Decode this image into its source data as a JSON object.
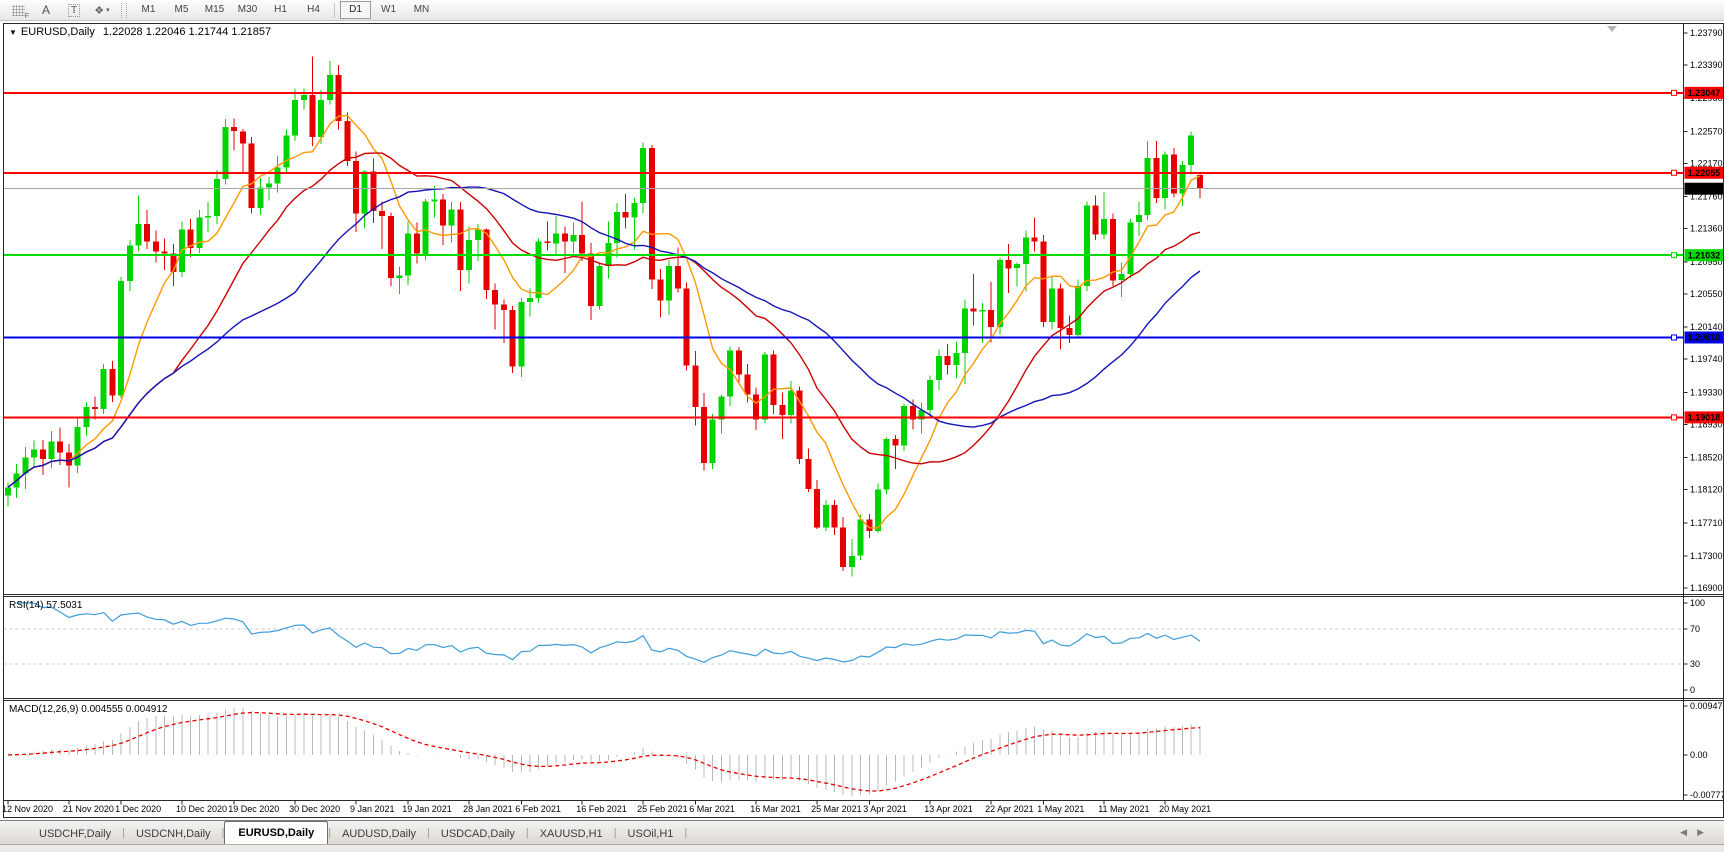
{
  "toolbar": {
    "icons": {
      "f_label": "F",
      "a_label": "A",
      "t_label": "T",
      "diamond": "❖",
      "caret": "▾"
    },
    "timeframes": [
      "M1",
      "M5",
      "M15",
      "M30",
      "H1",
      "H4",
      "D1",
      "W1",
      "MN"
    ],
    "active_timeframe": "D1"
  },
  "panes": {
    "main_title": "EURUSD,Daily",
    "main_ohlc": "1.22028 1.22046 1.21744 1.21857",
    "title_caret": "▼",
    "rsi": "RSI(14) 57.5031",
    "macd": "MACD(12,26,9) 0.004555 0.004912"
  },
  "ui_colors": {
    "bull": "#00d400",
    "bear": "#e60000",
    "ma_fast": "#ff9900",
    "ma_mid": "#cc0000",
    "ma_slow": "#1414b8",
    "rsi_line": "#3e9cd9",
    "guide": "#c8c8c8",
    "macd_hist": "#b8b8b8",
    "macd_signal": "#e80000",
    "price_line": "#a8a8a8",
    "level_red": "#ff0000",
    "level_green": "#00dc00",
    "level_blue": "#0000e6",
    "badge_black": "#000000"
  },
  "chart_data": {
    "type": "candlestick",
    "symbol": "EURUSD",
    "timeframe": "Daily",
    "ylim": [
      1.169,
      1.2379
    ],
    "price_ticks": [
      "1.23790",
      "1.23390",
      "1.22980",
      "1.22570",
      "1.22170",
      "1.21760",
      "1.21360",
      "1.20950",
      "1.20550",
      "1.20140",
      "1.19740",
      "1.19330",
      "1.18930",
      "1.18520",
      "1.18120",
      "1.17710",
      "1.17300",
      "1.16900"
    ],
    "levels": [
      {
        "price": 1.23047,
        "label": "1.23047",
        "color": "#ff0000",
        "text_color": "#ffffff"
      },
      {
        "price": 1.22055,
        "label": "1.22055",
        "color": "#ff0000",
        "text_color": "#ffffff"
      },
      {
        "price": 1.21032,
        "label": "1.21032",
        "color": "#00dc00",
        "text_color": "#000000"
      },
      {
        "price": 1.2001,
        "label": "1.20010",
        "color": "#0000e6",
        "text_color": "#ffffff"
      },
      {
        "price": 1.19018,
        "label": "1.19018",
        "color": "#ff0000",
        "text_color": "#ffffff"
      }
    ],
    "current_price": {
      "value": 1.21857,
      "label": "1.21857",
      "badge_color": "#000000",
      "text_color": "#ffffff"
    },
    "overlays": [
      {
        "name": "ma-fast",
        "type": "sma",
        "period": 8,
        "color": "#ff9900"
      },
      {
        "name": "ma-mid",
        "type": "sma",
        "period": 20,
        "color": "#cc0000"
      },
      {
        "name": "ma-slow",
        "type": "sma",
        "period": 34,
        "color": "#1414b8"
      }
    ],
    "candles": [
      [
        1.1805,
        1.1821,
        1.1791,
        1.1815
      ],
      [
        1.1815,
        1.1844,
        1.1802,
        1.1832
      ],
      [
        1.1832,
        1.1865,
        1.1813,
        1.1852
      ],
      [
        1.1852,
        1.1873,
        1.1839,
        1.1862
      ],
      [
        1.1862,
        1.1874,
        1.183,
        1.185
      ],
      [
        1.185,
        1.1885,
        1.1839,
        1.1872
      ],
      [
        1.1872,
        1.1889,
        1.1843,
        1.1858
      ],
      [
        1.1858,
        1.1869,
        1.1815,
        1.1842
      ],
      [
        1.1842,
        1.1901,
        1.1833,
        1.189
      ],
      [
        1.189,
        1.192,
        1.1879,
        1.1915
      ],
      [
        1.1915,
        1.1928,
        1.1899,
        1.1912
      ],
      [
        1.1912,
        1.1968,
        1.1906,
        1.1962
      ],
      [
        1.1962,
        1.1972,
        1.1921,
        1.1929
      ],
      [
        1.1929,
        1.2076,
        1.1926,
        1.2071
      ],
      [
        1.2071,
        1.2122,
        1.2059,
        1.2115
      ],
      [
        1.2115,
        1.2177,
        1.2108,
        1.2142
      ],
      [
        1.2142,
        1.2159,
        1.2111,
        1.212
      ],
      [
        1.212,
        1.2134,
        1.2094,
        1.2108
      ],
      [
        1.2108,
        1.2124,
        1.2085,
        1.2105
      ],
      [
        1.2105,
        1.2117,
        1.2065,
        1.2082
      ],
      [
        1.2082,
        1.2145,
        1.2076,
        1.2135
      ],
      [
        1.2135,
        1.2148,
        1.2101,
        1.2112
      ],
      [
        1.2112,
        1.2159,
        1.2106,
        1.215
      ],
      [
        1.215,
        1.2169,
        1.2132,
        1.2152
      ],
      [
        1.2152,
        1.2209,
        1.2142,
        1.2198
      ],
      [
        1.2198,
        1.2272,
        1.2191,
        1.2262
      ],
      [
        1.2262,
        1.2273,
        1.2233,
        1.2257
      ],
      [
        1.2257,
        1.226,
        1.2206,
        1.2242
      ],
      [
        1.2242,
        1.225,
        1.2155,
        1.2162
      ],
      [
        1.2162,
        1.2199,
        1.2153,
        1.2187
      ],
      [
        1.2187,
        1.22,
        1.2171,
        1.2192
      ],
      [
        1.2192,
        1.2226,
        1.2181,
        1.2212
      ],
      [
        1.2212,
        1.2259,
        1.2205,
        1.2252
      ],
      [
        1.2252,
        1.231,
        1.2245,
        1.2296
      ],
      [
        1.2296,
        1.231,
        1.2284,
        1.2302
      ],
      [
        1.2302,
        1.23497,
        1.2239,
        1.225
      ],
      [
        1.225,
        1.2309,
        1.2241,
        1.2296
      ],
      [
        1.2296,
        1.2344,
        1.229,
        1.2327
      ],
      [
        1.2327,
        1.2339,
        1.2259,
        1.227
      ],
      [
        1.227,
        1.228,
        1.2214,
        1.222
      ],
      [
        1.222,
        1.2232,
        1.2132,
        1.2155
      ],
      [
        1.2155,
        1.2208,
        1.2137,
        1.2207
      ],
      [
        1.2207,
        1.2223,
        1.2143,
        1.2158
      ],
      [
        1.2158,
        1.217,
        1.2111,
        1.2152
      ],
      [
        1.2152,
        1.2156,
        1.2065,
        1.2075
      ],
      [
        1.2075,
        1.2089,
        1.2055,
        1.2078
      ],
      [
        1.2078,
        1.2145,
        1.2066,
        1.213
      ],
      [
        1.213,
        1.2144,
        1.2093,
        1.2105
      ],
      [
        1.2105,
        1.2173,
        1.2097,
        1.217
      ],
      [
        1.217,
        1.2189,
        1.215,
        1.2172
      ],
      [
        1.2172,
        1.2179,
        1.2116,
        1.214
      ],
      [
        1.214,
        1.2169,
        1.2119,
        1.216
      ],
      [
        1.216,
        1.2169,
        1.2059,
        1.2085
      ],
      [
        1.2085,
        1.2139,
        1.2068,
        1.2122
      ],
      [
        1.2122,
        1.2142,
        1.2096,
        1.2135
      ],
      [
        1.2135,
        1.2136,
        1.2049,
        1.206
      ],
      [
        1.206,
        1.2068,
        1.2011,
        1.2042
      ],
      [
        1.2042,
        1.2048,
        1.1994,
        1.2035
      ],
      [
        1.2035,
        1.204,
        1.1957,
        1.1965
      ],
      [
        1.1965,
        1.205,
        1.1952,
        1.2045
      ],
      [
        1.2045,
        1.2062,
        1.2027,
        1.205
      ],
      [
        1.205,
        1.2124,
        1.2044,
        1.212
      ],
      [
        1.212,
        1.2145,
        1.2109,
        1.2118
      ],
      [
        1.2118,
        1.2152,
        1.2103,
        1.213
      ],
      [
        1.213,
        1.2139,
        1.2081,
        1.212
      ],
      [
        1.212,
        1.2144,
        1.2105,
        1.2128
      ],
      [
        1.2128,
        1.217,
        1.2096,
        1.2105
      ],
      [
        1.2105,
        1.2118,
        1.2023,
        1.204
      ],
      [
        1.204,
        1.2094,
        1.2036,
        1.209
      ],
      [
        1.209,
        1.2145,
        1.2074,
        1.2118
      ],
      [
        1.2118,
        1.2168,
        1.21,
        1.2157
      ],
      [
        1.2157,
        1.2179,
        1.2136,
        1.215
      ],
      [
        1.215,
        1.2174,
        1.211,
        1.2168
      ],
      [
        1.2168,
        1.2243,
        1.2155,
        1.2236
      ],
      [
        1.2236,
        1.224,
        1.2061,
        1.2073
      ],
      [
        1.2073,
        1.2086,
        1.2026,
        1.2047
      ],
      [
        1.2047,
        1.2097,
        1.2029,
        1.209
      ],
      [
        1.209,
        1.2113,
        1.2057,
        1.2062
      ],
      [
        1.2062,
        1.2069,
        1.196,
        1.1966
      ],
      [
        1.1966,
        1.1984,
        1.1892,
        1.1915
      ],
      [
        1.1915,
        1.1932,
        1.1836,
        1.1845
      ],
      [
        1.1845,
        1.1906,
        1.1838,
        1.1899
      ],
      [
        1.1899,
        1.193,
        1.1882,
        1.1928
      ],
      [
        1.1928,
        1.199,
        1.1916,
        1.1985
      ],
      [
        1.1985,
        1.1989,
        1.1943,
        1.1955
      ],
      [
        1.1955,
        1.1968,
        1.192,
        1.193
      ],
      [
        1.193,
        1.1939,
        1.1886,
        1.1899
      ],
      [
        1.1899,
        1.1983,
        1.1895,
        1.198
      ],
      [
        1.198,
        1.1985,
        1.1906,
        1.1917
      ],
      [
        1.1917,
        1.1933,
        1.1875,
        1.1905
      ],
      [
        1.1905,
        1.1947,
        1.1894,
        1.1935
      ],
      [
        1.1935,
        1.194,
        1.1844,
        1.185
      ],
      [
        1.185,
        1.1863,
        1.1809,
        1.1813
      ],
      [
        1.1813,
        1.1824,
        1.1763,
        1.1765
      ],
      [
        1.1765,
        1.1799,
        1.1761,
        1.1793
      ],
      [
        1.1793,
        1.1799,
        1.1756,
        1.1765
      ],
      [
        1.1765,
        1.1778,
        1.1711,
        1.1716
      ],
      [
        1.1716,
        1.1751,
        1.1704,
        1.173
      ],
      [
        1.173,
        1.1781,
        1.1725,
        1.1775
      ],
      [
        1.1775,
        1.1782,
        1.1752,
        1.1761
      ],
      [
        1.1761,
        1.182,
        1.1758,
        1.1812
      ],
      [
        1.1812,
        1.1877,
        1.1806,
        1.1875
      ],
      [
        1.1875,
        1.188,
        1.1838,
        1.1867
      ],
      [
        1.1867,
        1.1919,
        1.186,
        1.1916
      ],
      [
        1.1916,
        1.1924,
        1.1887,
        1.1899
      ],
      [
        1.1899,
        1.192,
        1.1882,
        1.1911
      ],
      [
        1.1911,
        1.1954,
        1.1903,
        1.1948
      ],
      [
        1.1948,
        1.1986,
        1.1936,
        1.1978
      ],
      [
        1.1978,
        1.1993,
        1.1955,
        1.1967
      ],
      [
        1.1967,
        1.1996,
        1.195,
        1.1982
      ],
      [
        1.1982,
        1.2048,
        1.1943,
        1.2037
      ],
      [
        1.2037,
        1.208,
        1.2016,
        1.2033
      ],
      [
        1.2033,
        1.2044,
        1.1994,
        1.2035
      ],
      [
        1.2035,
        1.207,
        1.1995,
        1.2014
      ],
      [
        1.2014,
        1.21,
        1.2005,
        1.2097
      ],
      [
        1.2097,
        1.2117,
        1.2056,
        1.2087
      ],
      [
        1.2087,
        1.2094,
        1.2064,
        1.2092
      ],
      [
        1.2092,
        1.2134,
        1.2058,
        1.2125
      ],
      [
        1.2125,
        1.215,
        1.2108,
        1.212
      ],
      [
        1.212,
        1.2128,
        1.2014,
        1.202
      ],
      [
        1.202,
        1.2076,
        1.2011,
        1.2062
      ],
      [
        1.2062,
        1.2068,
        1.1986,
        1.2013
      ],
      [
        1.2013,
        1.2028,
        1.1994,
        1.2004
      ],
      [
        1.2004,
        1.2073,
        1.2,
        1.2065
      ],
      [
        1.2065,
        1.217,
        1.2059,
        1.2165
      ],
      [
        1.2165,
        1.2177,
        1.2122,
        1.2129
      ],
      [
        1.2129,
        1.2181,
        1.2123,
        1.2148
      ],
      [
        1.2148,
        1.2155,
        1.2065,
        1.2072
      ],
      [
        1.2072,
        1.2094,
        1.2051,
        1.208
      ],
      [
        1.208,
        1.2148,
        1.2075,
        1.2144
      ],
      [
        1.2144,
        1.2169,
        1.2127,
        1.2153
      ],
      [
        1.2153,
        1.2245,
        1.2147,
        1.2224
      ],
      [
        1.2224,
        1.2245,
        1.2168,
        1.2174
      ],
      [
        1.2174,
        1.2232,
        1.216,
        1.2228
      ],
      [
        1.2228,
        1.2236,
        1.2175,
        1.218
      ],
      [
        1.218,
        1.222,
        1.2164,
        1.2215
      ],
      [
        1.2215,
        1.2257,
        1.2206,
        1.2252
      ],
      [
        1.22028,
        1.22046,
        1.21744,
        1.21857
      ]
    ],
    "x_axis": {
      "labels": [
        "12 Nov 2020",
        "21 Nov 2020",
        "1 Dec 2020",
        "10 Dec 2020",
        "19 Dec 2020",
        "30 Dec 2020",
        "9 Jan 2021",
        "19 Jan 2021",
        "28 Jan 2021",
        "6 Feb 2021",
        "16 Feb 2021",
        "25 Feb 2021",
        "6 Mar 2021",
        "16 Mar 2021",
        "25 Mar 2021",
        "3 Apr 2021",
        "13 Apr 2021",
        "22 Apr 2021",
        "1 May 2021",
        "11 May 2021",
        "20 May 2021"
      ],
      "candle_indices": [
        0,
        7,
        13,
        20,
        26,
        33,
        40,
        46,
        53,
        59,
        66,
        73,
        79,
        86,
        93,
        99,
        106,
        113,
        119,
        126,
        133
      ]
    },
    "sub_charts": [
      {
        "type": "line",
        "name": "RSI(14)",
        "period": 14,
        "current": 57.5031,
        "range": [
          0,
          100
        ],
        "guides": [
          70,
          30
        ],
        "ticks": [
          "100",
          "70",
          "30",
          "0"
        ]
      },
      {
        "type": "macd",
        "name": "MACD(12,26,9)",
        "fast": 12,
        "slow": 26,
        "signal_period": 9,
        "current_macd": 0.004555,
        "current_signal": 0.004912,
        "range": [
          -0.007778,
          0.009478
        ],
        "ticks": [
          "0.009478",
          "0.00",
          "-0.007778"
        ]
      }
    ]
  },
  "tabs": {
    "items": [
      "USDCHF,Daily",
      "USDCNH,Daily",
      "EURUSD,Daily",
      "AUDUSD,Daily",
      "USDCAD,Daily",
      "XAUUSD,H1",
      "USOil,H1"
    ],
    "active_index": 2,
    "scroll_left": "◀",
    "scroll_right": "▶"
  }
}
